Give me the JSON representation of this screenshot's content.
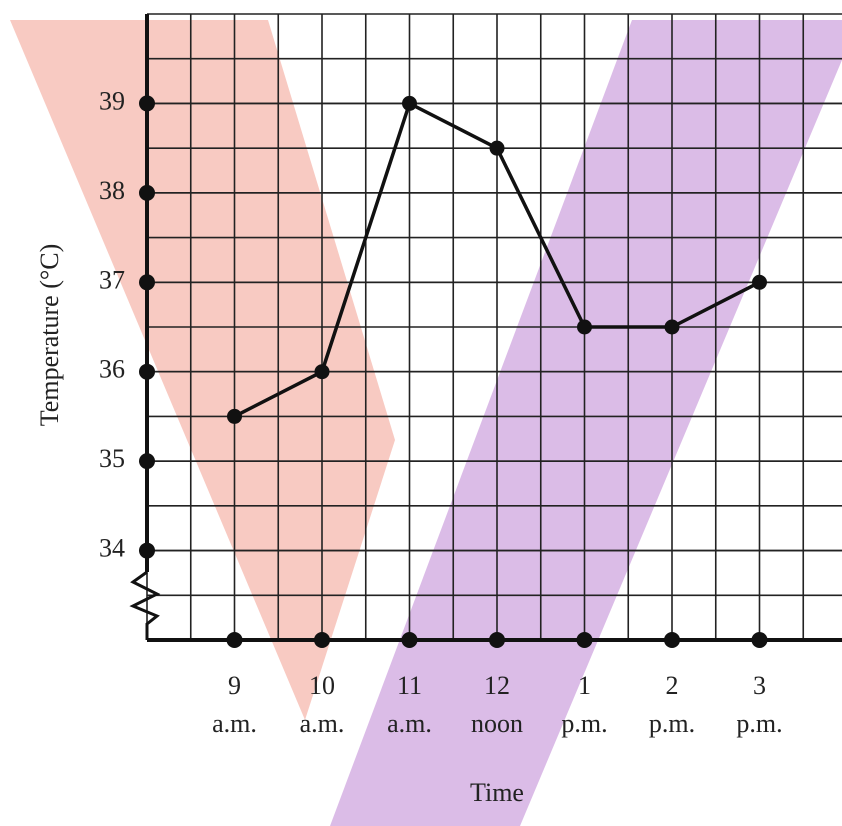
{
  "chart_data": {
    "type": "line",
    "x_label": "Time",
    "y_label": "Temperature (°C)",
    "categories": [
      [
        "9",
        "a.m."
      ],
      [
        "10",
        "a.m."
      ],
      [
        "11",
        "a.m."
      ],
      [
        "12",
        "noon"
      ],
      [
        "1",
        "p.m."
      ],
      [
        "2",
        "p.m."
      ],
      [
        "3",
        "p.m."
      ]
    ],
    "values": [
      35.5,
      36,
      39,
      38.5,
      36.5,
      36.5,
      37
    ],
    "color": "#111111",
    "ylim": [
      33,
      40
    ],
    "yticks": [
      34,
      35,
      36,
      37,
      38,
      39
    ],
    "grid": true
  }
}
